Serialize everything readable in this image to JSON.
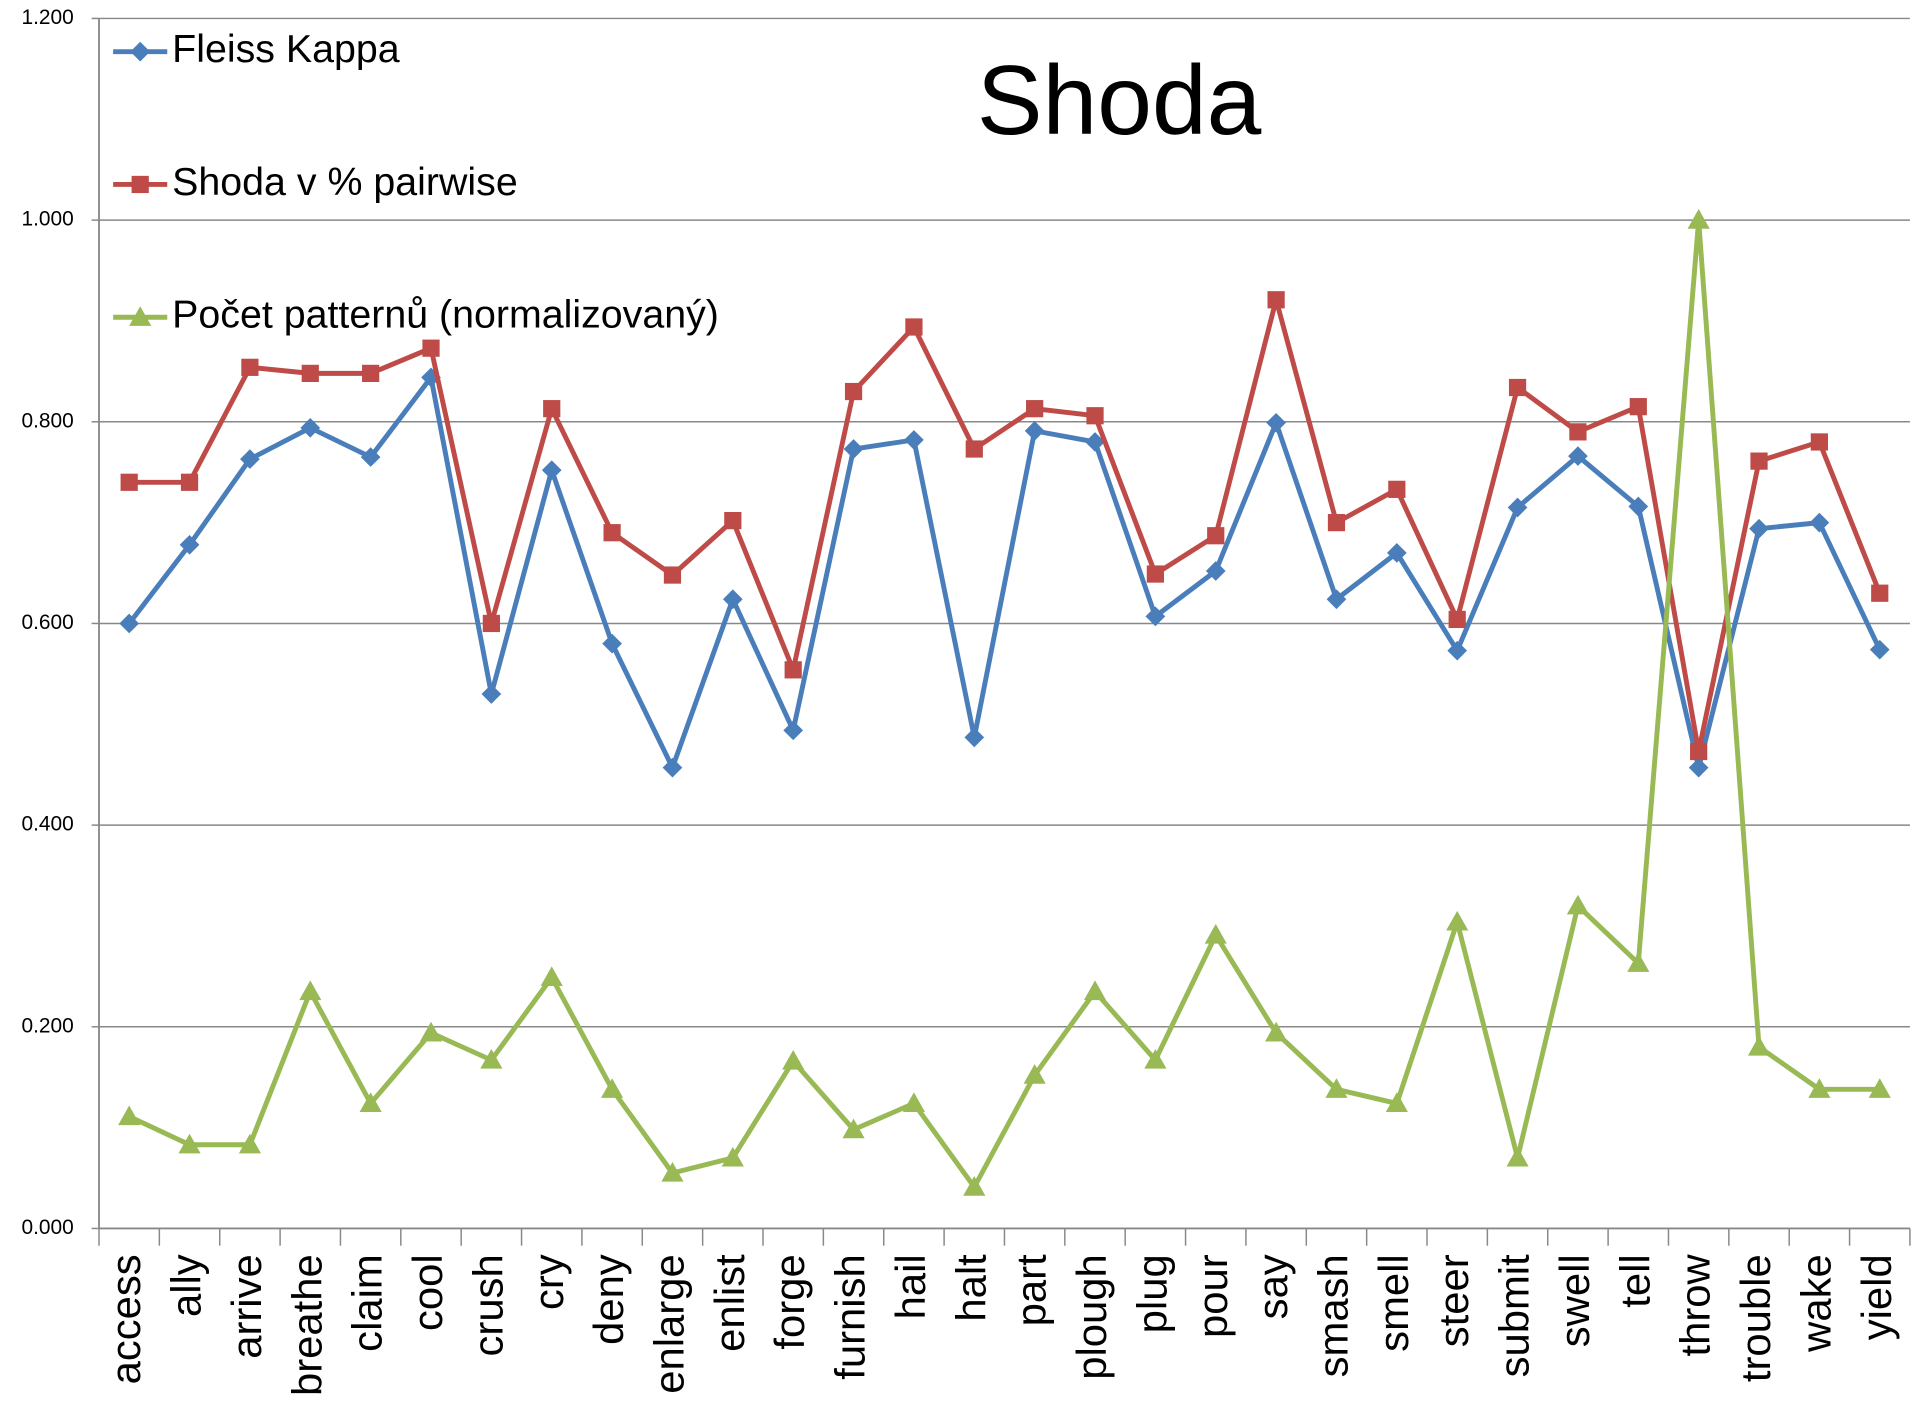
{
  "chart_data": {
    "type": "line",
    "title": "Shoda",
    "categories": [
      "access",
      "ally",
      "arrive",
      "breathe",
      "claim",
      "cool",
      "crush",
      "cry",
      "deny",
      "enlarge",
      "enlist",
      "forge",
      "furnish",
      "hail",
      "halt",
      "part",
      "plough",
      "plug",
      "pour",
      "say",
      "smash",
      "smell",
      "steer",
      "submit",
      "swell",
      "tell",
      "throw",
      "trouble",
      "wake",
      "yield"
    ],
    "series": [
      {
        "name": "Fleiss Kappa",
        "color": "#4a7ebb",
        "marker": "diamond",
        "values": [
          0.6,
          0.678,
          0.763,
          0.794,
          0.765,
          0.844,
          0.53,
          0.752,
          0.58,
          0.457,
          0.624,
          0.494,
          0.773,
          0.782,
          0.487,
          0.791,
          0.78,
          0.607,
          0.652,
          0.799,
          0.624,
          0.67,
          0.573,
          0.715,
          0.766,
          0.716,
          0.457,
          0.694,
          0.7,
          0.574
        ]
      },
      {
        "name": "Shoda v % pairwise",
        "color": "#be4b48",
        "marker": "square",
        "values": [
          0.74,
          0.74,
          0.854,
          0.848,
          0.848,
          0.873,
          0.6,
          0.813,
          0.69,
          0.648,
          0.702,
          0.554,
          0.83,
          0.894,
          0.773,
          0.813,
          0.806,
          0.649,
          0.687,
          0.921,
          0.7,
          0.733,
          0.604,
          0.834,
          0.79,
          0.815,
          0.473,
          0.761,
          0.78,
          0.63
        ]
      },
      {
        "name": "Počet patternů (normalizovaný)",
        "color": "#98b954",
        "marker": "triangle",
        "values": [
          0.111,
          0.083,
          0.083,
          0.235,
          0.124,
          0.194,
          0.167,
          0.249,
          0.138,
          0.055,
          0.07,
          0.166,
          0.098,
          0.124,
          0.041,
          0.152,
          0.235,
          0.167,
          0.291,
          0.194,
          0.138,
          0.124,
          0.304,
          0.07,
          0.32,
          0.263,
          1.0,
          0.18,
          0.138,
          0.138
        ]
      }
    ],
    "ylim": [
      0,
      1.2
    ],
    "yticks": [
      {
        "value": 0,
        "label": "0.000"
      },
      {
        "value": 0.2,
        "label": "0.200"
      },
      {
        "value": 0.4,
        "label": "0.400"
      },
      {
        "value": 0.6,
        "label": "0.600"
      },
      {
        "value": 0.8,
        "label": "0.800"
      },
      {
        "value": 1.0,
        "label": "1.000"
      },
      {
        "value": 1.2,
        "label": "1.200"
      }
    ],
    "grid": true,
    "legend": "top-left"
  }
}
